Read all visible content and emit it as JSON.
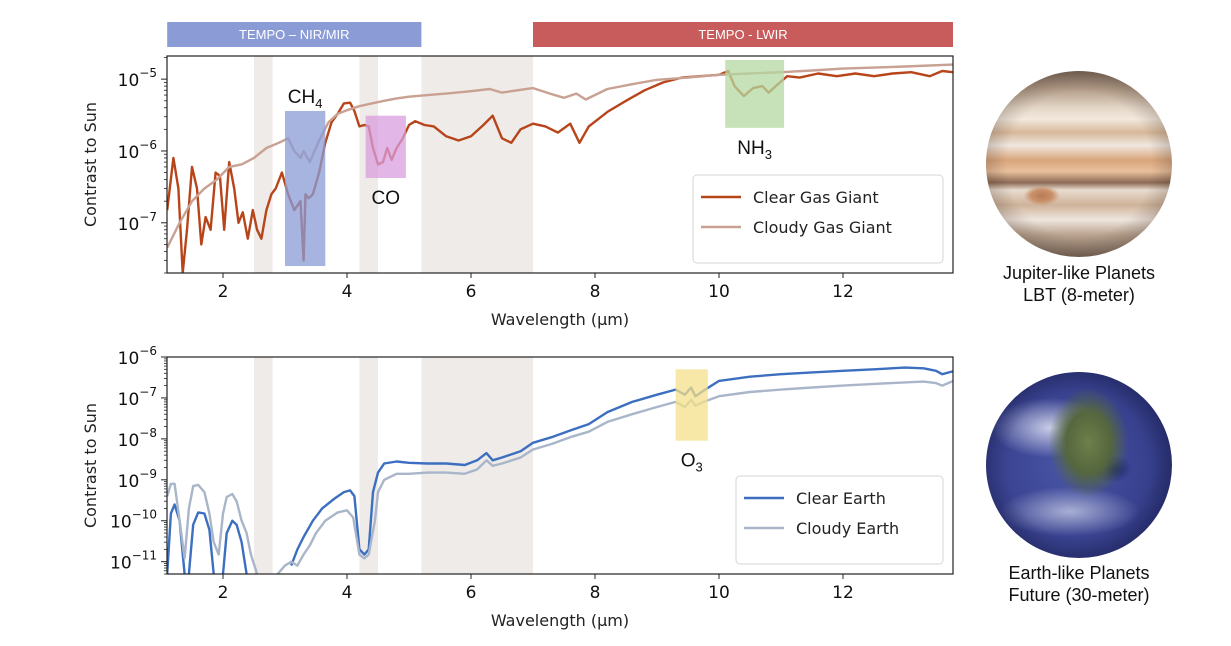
{
  "instrument_bands": [
    {
      "label": "TEMPO – NIR/MIR",
      "x_start": 1.1,
      "x_end": 5.2,
      "color": "#8a9bd6"
    },
    {
      "label": "TEMPO - LWIR",
      "x_start": 7.0,
      "x_end": 13.78,
      "color": "#c85b5b"
    }
  ],
  "chart_data": [
    {
      "type": "line",
      "title": "",
      "xlabel": "Wavelength (μm)",
      "ylabel": "Contrast to Sun",
      "yscale": "log",
      "xlim": [
        1.1,
        13.78
      ],
      "ylim": [
        2e-08,
        2.1e-05
      ],
      "x_ticks": [
        2,
        4,
        6,
        8,
        10,
        12
      ],
      "y_ticks": [
        {
          "value": 1e-07,
          "label_base": "10",
          "label_exp": "−7"
        },
        {
          "value": 1e-06,
          "label_base": "10",
          "label_exp": "−6"
        },
        {
          "value": 1e-05,
          "label_base": "10",
          "label_exp": "−5"
        }
      ],
      "gap_bands": [
        [
          2.5,
          2.8
        ],
        [
          4.2,
          4.5
        ],
        [
          5.2,
          7.0
        ]
      ],
      "features": [
        {
          "label": "CH",
          "sub": "4",
          "x_range": [
            3.0,
            3.65
          ],
          "y_range": [
            2.5e-08,
            3.6e-06
          ],
          "color": "#8a9bd6",
          "label_pos": "above"
        },
        {
          "label": "CO",
          "sub": "",
          "x_range": [
            4.3,
            4.95
          ],
          "y_range": [
            4.2e-07,
            3.1e-06
          ],
          "color": "#d89ede",
          "label_pos": "below"
        },
        {
          "label": "NH",
          "sub": "3",
          "x_range": [
            10.1,
            11.05
          ],
          "y_range": [
            2.1e-06,
            1.85e-05
          ],
          "color": "#b4d8a0",
          "label_pos": "below"
        }
      ],
      "legend": {
        "position": "bottom-right"
      },
      "series": [
        {
          "name": "Clear Gas Giant",
          "color": "#b8441a",
          "x": [
            1.1,
            1.2,
            1.28,
            1.35,
            1.42,
            1.5,
            1.58,
            1.65,
            1.72,
            1.8,
            1.88,
            1.95,
            2.02,
            2.1,
            2.18,
            2.25,
            2.32,
            2.4,
            2.48,
            2.55,
            2.62,
            2.7,
            2.78,
            2.85,
            2.95,
            3.05,
            3.15,
            3.25,
            3.3,
            3.33,
            3.38,
            3.45,
            3.55,
            3.65,
            3.75,
            3.85,
            3.95,
            4.05,
            4.12,
            4.2,
            4.28,
            4.35,
            4.42,
            4.5,
            4.58,
            4.65,
            4.72,
            4.8,
            4.9,
            5.0,
            5.1,
            5.25,
            5.4,
            5.6,
            5.8,
            6.0,
            6.2,
            6.35,
            6.5,
            6.65,
            6.8,
            7.0,
            7.2,
            7.4,
            7.6,
            7.75,
            7.9,
            8.2,
            8.5,
            8.8,
            9.1,
            9.4,
            9.7,
            10.0,
            10.15,
            10.25,
            10.4,
            10.55,
            10.7,
            10.8,
            10.95,
            11.1,
            11.3,
            11.6,
            11.9,
            12.2,
            12.5,
            12.8,
            13.1,
            13.4,
            13.6,
            13.78
          ],
          "y": [
            1.5e-07,
            8e-07,
            3e-07,
            2e-08,
            8e-08,
            6e-07,
            3e-07,
            5e-08,
            1.2e-07,
            8e-08,
            5e-07,
            4.5e-07,
            8e-08,
            7e-07,
            3e-07,
            1e-07,
            1.4e-07,
            6e-08,
            1.5e-07,
            8e-08,
            6e-08,
            1.5e-07,
            2.5e-07,
            3e-07,
            5e-07,
            2.5e-07,
            1.5e-07,
            2e-07,
            3e-08,
            2.5e-07,
            2.2e-07,
            2.5e-07,
            5e-07,
            1.3e-06,
            2.5e-06,
            3.3e-06,
            4.6e-06,
            4.7e-06,
            3.6e-06,
            2.2e-06,
            2.3e-06,
            2.2e-06,
            1.1e-06,
            6.5e-07,
            7e-07,
            1.1e-06,
            7.5e-07,
            1.1e-06,
            1.5e-06,
            2.3e-06,
            2.6e-06,
            2.3e-06,
            2.2e-06,
            1.6e-06,
            1.4e-06,
            1.6e-06,
            2.3e-06,
            3.1e-06,
            1.5e-06,
            1.3e-06,
            2e-06,
            2.4e-06,
            2.2e-06,
            1.8e-06,
            2.4e-06,
            1.3e-06,
            2.2e-06,
            3.5e-06,
            5e-06,
            7e-06,
            9e-06,
            1.05e-05,
            1.1e-05,
            1.15e-05,
            1.3e-05,
            8e-06,
            5.8e-06,
            7.5e-06,
            8e-06,
            6.5e-06,
            8.5e-06,
            1.1e-05,
            1.05e-05,
            1.2e-05,
            1.1e-05,
            1.2e-05,
            1.1e-05,
            1.2e-05,
            1.25e-05,
            1.1e-05,
            1.3e-05,
            1.25e-05
          ]
        },
        {
          "name": "Cloudy Gas Giant",
          "color": "#c8a192",
          "x": [
            1.1,
            1.3,
            1.5,
            1.7,
            1.9,
            2.1,
            2.3,
            2.5,
            2.7,
            2.9,
            3.05,
            3.15,
            3.25,
            3.3,
            3.4,
            3.55,
            3.7,
            3.85,
            4.0,
            4.2,
            4.4,
            4.6,
            4.8,
            5.0,
            5.3,
            5.6,
            6.0,
            6.3,
            6.5,
            6.8,
            7.0,
            7.3,
            7.5,
            7.7,
            7.85,
            8.2,
            8.6,
            9.0,
            9.5,
            10.0,
            10.5,
            11.0,
            11.5,
            12.0,
            12.5,
            13.0,
            13.78
          ],
          "y": [
            4.5e-08,
            1e-07,
            2e-07,
            3e-07,
            4e-07,
            6e-07,
            6.5e-07,
            8e-07,
            1.1e-06,
            1.3e-06,
            1.5e-06,
            1e-06,
            8e-07,
            1e-06,
            7e-07,
            1.4e-06,
            2.5e-06,
            3.3e-06,
            3.7e-06,
            4.2e-06,
            4.6e-06,
            5e-06,
            5.4e-06,
            5.7e-06,
            6e-06,
            6.3e-06,
            6.8e-06,
            7.3e-06,
            6.5e-06,
            7.1e-06,
            7.5e-06,
            6.2e-06,
            5.5e-06,
            6.3e-06,
            5.2e-06,
            7.3e-06,
            8.5e-06,
            9.8e-06,
            1.05e-05,
            1.15e-05,
            1.2e-05,
            1.25e-05,
            1.32e-05,
            1.4e-05,
            1.45e-05,
            1.5e-05,
            1.6e-05
          ]
        }
      ]
    },
    {
      "type": "line",
      "title": "",
      "xlabel": "Wavelength (μm)",
      "ylabel": "Contrast to Sun",
      "yscale": "log",
      "xlim": [
        1.1,
        13.78
      ],
      "ylim": [
        5e-12,
        1e-06
      ],
      "x_ticks": [
        2,
        4,
        6,
        8,
        10,
        12
      ],
      "y_ticks": [
        {
          "value": 1e-11,
          "label_base": "10",
          "label_exp": "−11"
        },
        {
          "value": 1e-10,
          "label_base": "10",
          "label_exp": "−10"
        },
        {
          "value": 1e-09,
          "label_base": "10",
          "label_exp": "−9"
        },
        {
          "value": 1e-08,
          "label_base": "10",
          "label_exp": "−8"
        },
        {
          "value": 1e-07,
          "label_base": "10",
          "label_exp": "−7"
        },
        {
          "value": 1e-06,
          "label_base": "10",
          "label_exp": "−6"
        }
      ],
      "gap_bands": [
        [
          2.5,
          2.8
        ],
        [
          4.2,
          4.5
        ],
        [
          5.2,
          7.0
        ]
      ],
      "features": [
        {
          "label": "O",
          "sub": "3",
          "x_range": [
            9.3,
            9.82
          ],
          "y_range": [
            9e-09,
            5e-07
          ],
          "color": "#f4e08a",
          "label_pos": "below"
        }
      ],
      "legend": {
        "position": "bottom-right"
      },
      "series": [
        {
          "name": "Clear Earth",
          "color": "#3c6fc0",
          "segments": [
            {
              "x": [
                1.1,
                1.16,
                1.22,
                1.3,
                1.38
              ],
              "y": [
                5e-12,
                1.5e-10,
                2.5e-10,
                1e-10,
                5e-12
              ]
            },
            {
              "x": [
                1.45,
                1.52,
                1.6,
                1.7,
                1.78,
                1.85
              ],
              "y": [
                5e-12,
                8e-11,
                1.6e-10,
                1.5e-10,
                6e-11,
                5e-12
              ]
            },
            {
              "x": [
                2.0,
                2.06,
                2.15,
                2.22,
                2.3,
                2.38
              ],
              "y": [
                5e-12,
                5e-11,
                1e-10,
                8e-11,
                3e-11,
                5e-12
              ]
            },
            {
              "x": [
                3.1,
                3.2,
                3.3,
                3.45,
                3.6,
                3.8,
                3.95,
                4.05,
                4.12,
                4.2,
                4.28,
                4.35,
                4.42,
                4.5,
                4.6,
                4.8,
                5.0,
                5.3,
                5.6,
                5.9,
                6.1,
                6.25,
                6.35,
                6.5,
                6.8,
                7.0,
                7.3,
                7.6,
                7.9,
                8.2,
                8.6,
                9.0,
                9.3,
                9.45,
                9.55,
                9.62,
                9.75,
                10.0,
                10.5,
                11.0,
                11.5,
                12.0,
                12.5,
                13.0,
                13.3,
                13.5,
                13.6,
                13.78
              ],
              "y": [
                8e-12,
                2e-11,
                4e-11,
                1e-10,
                2e-10,
                3.5e-10,
                5e-10,
                5.5e-10,
                4e-10,
                2e-11,
                1.5e-11,
                2e-11,
                5e-10,
                1.5e-09,
                2.5e-09,
                2.8e-09,
                2.6e-09,
                2.5e-09,
                2.5e-09,
                2.3e-09,
                3e-09,
                4.5e-09,
                3e-09,
                3.5e-09,
                5e-09,
                8e-09,
                1.1e-08,
                1.6e-08,
                2.3e-08,
                4.5e-08,
                8e-08,
                1.2e-07,
                1.6e-07,
                1.2e-07,
                1.8e-07,
                1.1e-07,
                1.5e-07,
                2.6e-07,
                3.3e-07,
                3.8e-07,
                4.2e-07,
                4.6e-07,
                5e-07,
                5.5e-07,
                5.3e-07,
                4.6e-07,
                3.8e-07,
                4.5e-07
              ]
            }
          ]
        },
        {
          "name": "Cloudy Earth",
          "color": "#a9b6c9",
          "segments": [
            {
              "x": [
                1.1,
                1.16,
                1.22,
                1.3,
                1.38,
                1.45,
                1.52,
                1.6,
                1.7,
                1.78,
                1.85,
                1.93,
                2.0,
                2.06,
                2.15,
                2.22,
                2.3,
                2.38,
                2.45,
                2.55
              ],
              "y": [
                4e-10,
                8e-10,
                8e-10,
                1e-10,
                1.2e-11,
                2e-10,
                7e-10,
                7.5e-10,
                5e-10,
                1.5e-10,
                3e-11,
                1.5e-11,
                1.5e-10,
                3.8e-10,
                4.5e-10,
                3e-10,
                1e-10,
                5e-11,
                1.5e-11,
                5e-12
              ]
            },
            {
              "x": [
                2.88,
                3.0,
                3.1,
                3.2,
                3.3,
                3.4,
                3.5,
                3.65,
                3.85,
                4.0,
                4.1,
                4.2,
                4.28,
                4.35,
                4.45,
                4.5,
                4.6,
                4.8,
                5.0,
                5.3,
                5.6,
                5.9,
                6.1,
                6.25,
                6.35,
                6.5,
                6.8,
                7.0,
                7.3,
                7.6,
                7.9,
                8.2,
                8.6,
                9.0,
                9.3,
                9.45,
                9.55,
                9.62,
                9.75,
                10.0,
                10.5,
                11.0,
                11.5,
                12.0,
                12.5,
                13.0,
                13.3,
                13.5,
                13.6,
                13.78
              ],
              "y": [
                5e-12,
                8e-12,
                1e-11,
                8e-12,
                1.5e-11,
                2.5e-11,
                5e-11,
                1e-10,
                1.6e-10,
                1.8e-10,
                1.2e-10,
                1.5e-11,
                1.2e-11,
                1.5e-11,
                1e-10,
                5e-10,
                1e-09,
                1.4e-09,
                1.4e-09,
                1.5e-09,
                1.5e-09,
                1.4e-09,
                1.8e-09,
                3e-09,
                2.2e-09,
                2.5e-09,
                3.5e-09,
                5.5e-09,
                7.5e-09,
                1.1e-08,
                1.5e-08,
                2.6e-08,
                4e-08,
                6e-08,
                8e-08,
                6e-08,
                9e-08,
                6.5e-08,
                8e-08,
                1.1e-07,
                1.4e-07,
                1.6e-07,
                1.8e-07,
                2e-07,
                2.2e-07,
                2.4e-07,
                2.5e-07,
                2.3e-07,
                2e-07,
                2.6e-07
              ]
            }
          ]
        }
      ]
    }
  ],
  "planets": [
    {
      "name": "jupiter",
      "caption_line1": "Jupiter-like Planets",
      "caption_line2": "LBT (8-meter)"
    },
    {
      "name": "earth",
      "caption_line1": "Earth-like Planets",
      "caption_line2": "Future (30-meter)"
    }
  ]
}
